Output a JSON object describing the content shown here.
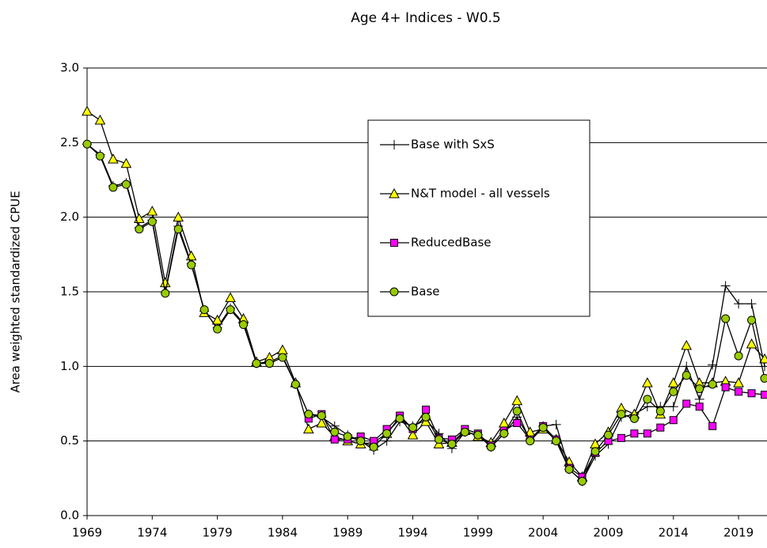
{
  "chart_data": {
    "type": "line",
    "title": "Age 4+ Indices - W0.5",
    "y_label": "Area weighted standardized CPUE",
    "x": [
      1969,
      1970,
      1971,
      1972,
      1973,
      1974,
      1975,
      1976,
      1977,
      1978,
      1979,
      1980,
      1981,
      1982,
      1983,
      1984,
      1985,
      1986,
      1987,
      1988,
      1989,
      1990,
      1991,
      1992,
      1993,
      1994,
      1995,
      1996,
      1997,
      1998,
      1999,
      2000,
      2001,
      2002,
      2003,
      2004,
      2005,
      2006,
      2007,
      2008,
      2009,
      2010,
      2011,
      2012,
      2013,
      2014,
      2015,
      2016,
      2017,
      2018,
      2019,
      2020,
      2021
    ],
    "xlim": [
      1969,
      2021
    ],
    "xticks": [
      1969,
      1974,
      1979,
      1984,
      1989,
      1994,
      1999,
      2004,
      2009,
      2014,
      2019
    ],
    "ylim": [
      0,
      3
    ],
    "yticks": [
      {
        "value": 0,
        "label": "0.0"
      },
      0.5,
      {
        "value": 1,
        "label": "1.0"
      },
      1.5,
      {
        "value": 2,
        "label": "2.0"
      },
      2.5,
      {
        "value": 3,
        "label": "3.0"
      }
    ],
    "grid": true,
    "legend": "upper center",
    "series": [
      {
        "name": "Base with SxS",
        "color": "#000000",
        "marker": "plus",
        "values": [
          2.49,
          2.42,
          2.21,
          2.23,
          1.93,
          1.98,
          1.5,
          1.94,
          1.69,
          1.37,
          1.26,
          1.39,
          1.29,
          1.02,
          1.03,
          1.07,
          0.88,
          0.68,
          0.66,
          0.6,
          0.54,
          0.5,
          0.44,
          0.5,
          0.63,
          0.6,
          0.64,
          0.55,
          0.45,
          0.56,
          0.54,
          0.46,
          0.55,
          0.66,
          0.51,
          0.6,
          0.61,
          0.31,
          0.23,
          0.4,
          0.48,
          0.66,
          0.68,
          0.73,
          0.73,
          0.73,
          1.0,
          0.78,
          1.01,
          1.54,
          1.42,
          1.42,
          1.0
        ]
      },
      {
        "name": "N&T model - all vessels",
        "color": "#ffff00",
        "marker": "triangle",
        "values": [
          2.71,
          2.65,
          2.39,
          2.36,
          1.99,
          2.04,
          1.56,
          2.0,
          1.74,
          1.36,
          1.31,
          1.46,
          1.32,
          1.03,
          1.06,
          1.11,
          0.89,
          0.58,
          0.62,
          0.53,
          0.5,
          0.48,
          0.49,
          0.55,
          0.66,
          0.54,
          0.63,
          0.48,
          0.49,
          0.57,
          0.53,
          0.49,
          0.62,
          0.77,
          0.56,
          0.58,
          0.51,
          0.36,
          0.26,
          0.48,
          0.56,
          0.72,
          0.68,
          0.89,
          0.68,
          0.89,
          1.14,
          0.89,
          0.89,
          0.9,
          0.89,
          1.15,
          1.05
        ]
      },
      {
        "name": "ReducedBase",
        "color": "#ff00ff",
        "marker": "square",
        "values": [
          null,
          null,
          null,
          null,
          null,
          null,
          null,
          null,
          null,
          null,
          null,
          null,
          null,
          null,
          null,
          null,
          null,
          0.65,
          0.68,
          0.51,
          0.51,
          0.53,
          0.5,
          0.58,
          0.67,
          0.58,
          0.71,
          0.52,
          0.51,
          0.58,
          0.55,
          0.47,
          0.57,
          0.62,
          0.51,
          0.6,
          0.51,
          0.32,
          0.26,
          0.42,
          0.5,
          0.52,
          0.55,
          0.55,
          0.59,
          0.64,
          0.75,
          0.73,
          0.6,
          0.86,
          0.83,
          0.82,
          0.81
        ]
      },
      {
        "name": "Base",
        "color": "#99cc00",
        "marker": "circle",
        "values": [
          2.49,
          2.41,
          2.2,
          2.22,
          1.92,
          1.97,
          1.49,
          1.92,
          1.68,
          1.38,
          1.25,
          1.38,
          1.28,
          1.02,
          1.02,
          1.06,
          0.88,
          0.68,
          0.67,
          0.56,
          0.53,
          0.5,
          0.46,
          0.55,
          0.65,
          0.59,
          0.66,
          0.51,
          0.48,
          0.56,
          0.54,
          0.46,
          0.55,
          0.7,
          0.5,
          0.59,
          0.5,
          0.31,
          0.23,
          0.43,
          0.54,
          0.68,
          0.65,
          0.78,
          0.7,
          0.83,
          0.94,
          0.85,
          0.88,
          1.32,
          1.07,
          1.31,
          0.92
        ]
      }
    ]
  }
}
